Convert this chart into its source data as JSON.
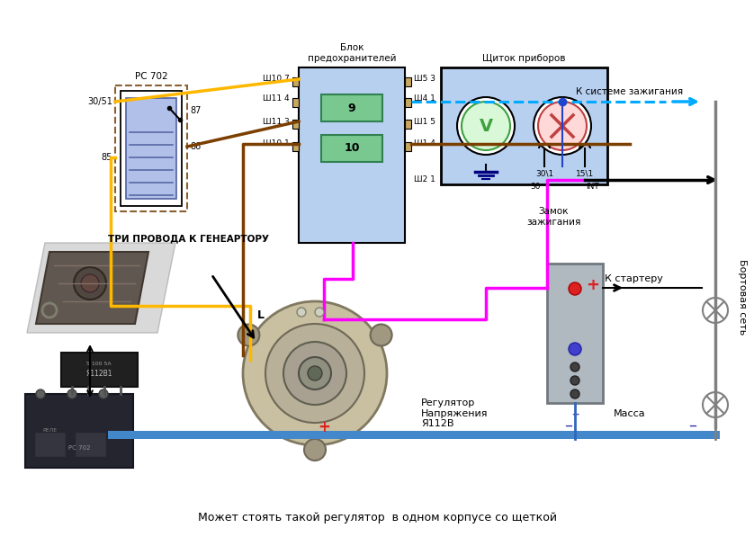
{
  "bg_color": "#ffffff",
  "fig_width": 8.38,
  "fig_height": 5.97,
  "col_yellow": "#FFB800",
  "col_brown": "#7B3F00",
  "col_pink": "#FF00FF",
  "col_blue_dashed": "#00AAFF",
  "col_black": "#000000",
  "col_gray": "#999999",
  "col_box_blue": "#B8D4F0",
  "col_green_fuse": "#70C090",
  "bottom_text": "Может стоять такой регулятор  в одном корпусе со щеткой",
  "three_wires_text": "ТРИ ПРОВОДА К ГЕНЕАРТОРУ",
  "regulator_text": "Регулятор\nНапряжения\nЯ112В",
  "zamok_text": "Замок\nзажигания",
  "k_starter_text": "К стартеру",
  "k_sistema_text": "К системе зажигания",
  "massa_text": "Масса",
  "bortovaya_text": "Бортовая сеть",
  "blok_text": "Блок\nпредохранителей",
  "shitok_text": "Щиток приборов",
  "INT_text": "INT",
  "RS_text": "РС 702"
}
